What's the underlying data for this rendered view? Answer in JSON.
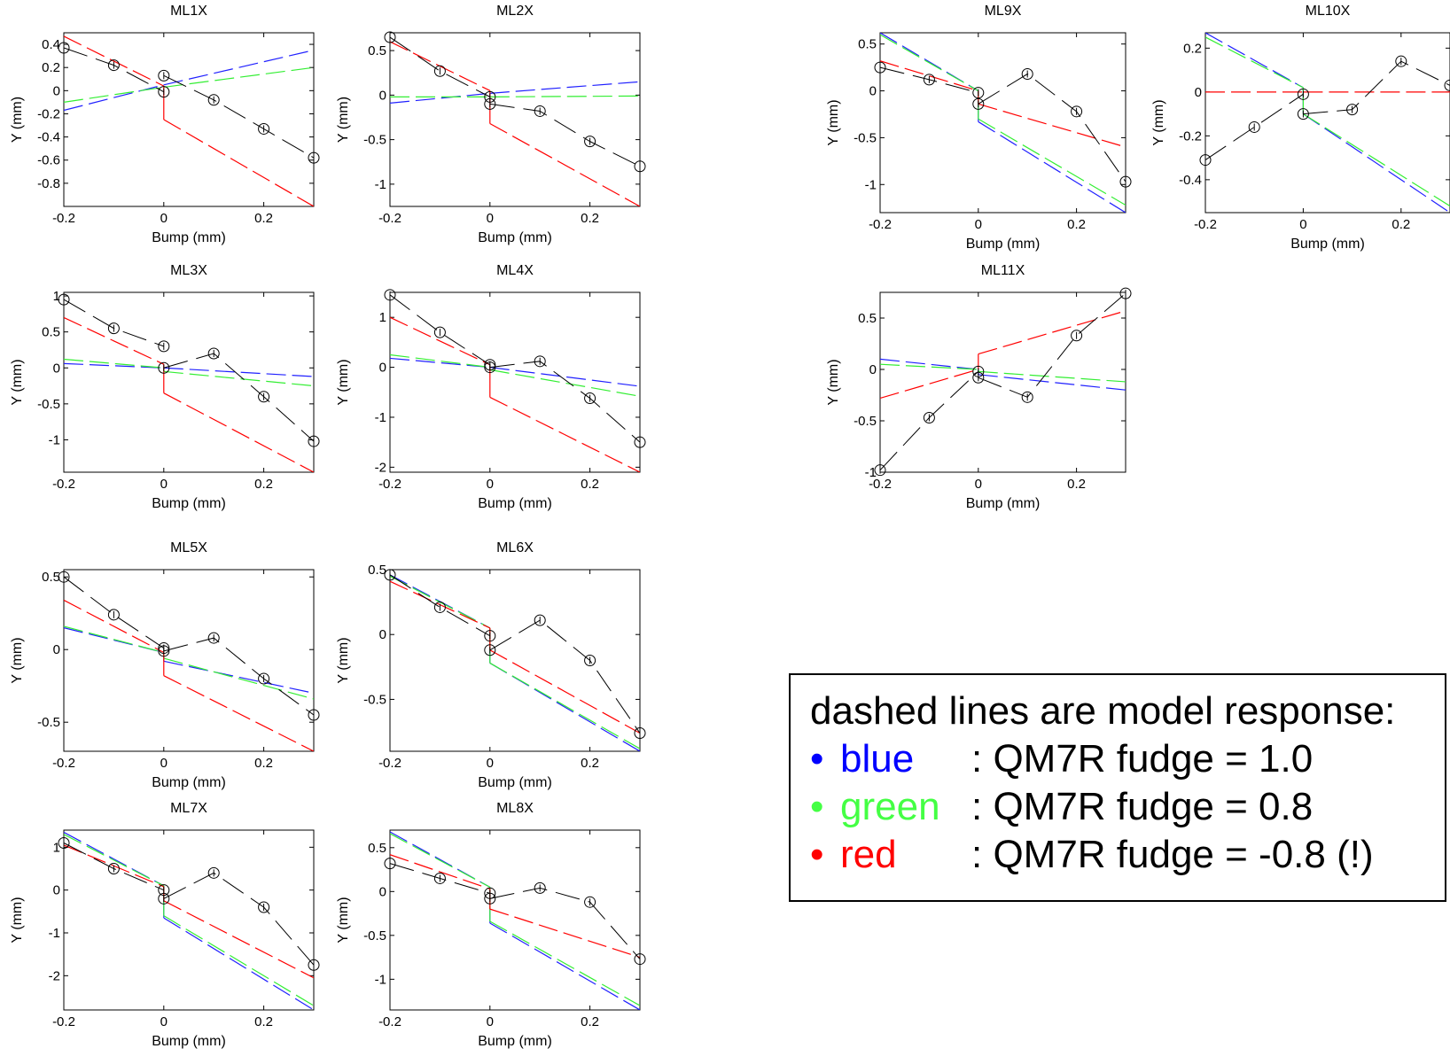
{
  "chart_data": [
    {
      "type": "line",
      "title": "ML1X",
      "xlabel": "Bump (mm)",
      "ylabel": "Y (mm)",
      "xlim": [
        -0.2,
        0.3
      ],
      "ylim": [
        -1.0,
        0.5
      ],
      "xticks": [
        -0.2,
        0,
        0.2
      ],
      "yticks": [
        0.4,
        0.2,
        0,
        -0.2,
        -0.4,
        -0.6,
        -0.8
      ],
      "ytick_labels": [
        "0.4",
        "0.2",
        "0",
        "-0.2",
        "-0.4",
        "-0.6",
        "-0.8"
      ],
      "measured": {
        "x": [
          -0.2,
          -0.1,
          0,
          0,
          0.1,
          0.2,
          0.3
        ],
        "y": [
          0.37,
          0.22,
          -0.01,
          0.13,
          -0.08,
          -0.33,
          -0.58
        ]
      },
      "model": {
        "blue": {
          "pre": [
            -0.17,
            0.05
          ],
          "post": [
            0.05,
            0.35
          ]
        },
        "green": {
          "pre": [
            -0.1,
            0.03
          ],
          "post": [
            0.03,
            0.2
          ]
        },
        "red": {
          "pre": [
            0.47,
            0.04
          ],
          "post": [
            -0.25,
            -1.0
          ]
        }
      }
    },
    {
      "type": "line",
      "title": "ML2X",
      "xlabel": "Bump (mm)",
      "ylabel": "Y (mm)",
      "xlim": [
        -0.2,
        0.3
      ],
      "ylim": [
        -1.25,
        0.7
      ],
      "xticks": [
        -0.2,
        0,
        0.2
      ],
      "yticks": [
        0.5,
        0,
        -0.5,
        -1
      ],
      "ytick_labels": [
        "0.5",
        "0",
        "-0.5",
        "-1"
      ],
      "measured": {
        "x": [
          -0.2,
          -0.1,
          0,
          0,
          0.1,
          0.2,
          0.3
        ],
        "y": [
          0.65,
          0.27,
          -0.02,
          -0.1,
          -0.18,
          -0.52,
          -0.8
        ]
      },
      "model": {
        "blue": {
          "pre": [
            -0.09,
            0.02
          ],
          "post": [
            0.02,
            0.15
          ]
        },
        "green": {
          "pre": [
            -0.02,
            -0.02
          ],
          "post": [
            -0.02,
            -0.01
          ]
        },
        "red": {
          "pre": [
            0.6,
            0.05
          ],
          "post": [
            -0.32,
            -1.25
          ]
        }
      }
    },
    {
      "type": "line",
      "title": "ML3X",
      "xlabel": "Bump (mm)",
      "ylabel": "Y (mm)",
      "xlim": [
        -0.2,
        0.3
      ],
      "ylim": [
        -1.45,
        1.05
      ],
      "xticks": [
        -0.2,
        0,
        0.2
      ],
      "yticks": [
        1,
        0.5,
        0,
        -0.5,
        -1
      ],
      "ytick_labels": [
        "1",
        "0.5",
        "0",
        "-0.5",
        "-1"
      ],
      "measured": {
        "x": [
          -0.2,
          -0.1,
          0,
          0,
          0.1,
          0.2,
          0.3
        ],
        "y": [
          0.95,
          0.55,
          0.3,
          0.0,
          0.2,
          -0.4,
          -1.02
        ]
      },
      "model": {
        "blue": {
          "pre": [
            0.06,
            0.0
          ],
          "post": [
            0.0,
            -0.12
          ]
        },
        "green": {
          "pre": [
            0.12,
            0.0
          ],
          "post": [
            -0.05,
            -0.25
          ]
        },
        "red": {
          "pre": [
            0.7,
            0.05
          ],
          "post": [
            -0.35,
            -1.45
          ]
        }
      }
    },
    {
      "type": "line",
      "title": "ML4X",
      "xlabel": "Bump (mm)",
      "ylabel": "Y (mm)",
      "xlim": [
        -0.2,
        0.3
      ],
      "ylim": [
        -2.1,
        1.5
      ],
      "xticks": [
        -0.2,
        0,
        0.2
      ],
      "yticks": [
        1,
        0,
        -1,
        -2
      ],
      "ytick_labels": [
        "1",
        "0",
        "-1",
        "-2"
      ],
      "measured": {
        "x": [
          -0.2,
          -0.1,
          0,
          0,
          0.1,
          0.2,
          0.3
        ],
        "y": [
          1.45,
          0.7,
          0.05,
          0.0,
          0.12,
          -0.62,
          -1.5
        ]
      },
      "model": {
        "blue": {
          "pre": [
            0.18,
            0.0
          ],
          "post": [
            0.0,
            -0.38
          ]
        },
        "green": {
          "pre": [
            0.25,
            0.0
          ],
          "post": [
            -0.05,
            -0.58
          ]
        },
        "red": {
          "pre": [
            1.0,
            0.05
          ],
          "post": [
            -0.6,
            -2.1
          ]
        }
      }
    },
    {
      "type": "line",
      "title": "ML5X",
      "xlabel": "Bump (mm)",
      "ylabel": "Y (mm)",
      "xlim": [
        -0.2,
        0.3
      ],
      "ylim": [
        -0.7,
        0.55
      ],
      "xticks": [
        -0.2,
        0,
        0.2
      ],
      "yticks": [
        0.5,
        0,
        -0.5
      ],
      "ytick_labels": [
        "0.5",
        "0",
        "-0.5"
      ],
      "measured": {
        "x": [
          -0.2,
          -0.1,
          0,
          0,
          0.1,
          0.2,
          0.3
        ],
        "y": [
          0.5,
          0.24,
          0.01,
          -0.01,
          0.08,
          -0.2,
          -0.45
        ]
      },
      "model": {
        "blue": {
          "pre": [
            0.15,
            -0.02
          ],
          "post": [
            -0.08,
            -0.3
          ]
        },
        "green": {
          "pre": [
            0.16,
            -0.02
          ],
          "post": [
            -0.06,
            -0.34
          ]
        },
        "red": {
          "pre": [
            0.34,
            -0.02
          ],
          "post": [
            -0.18,
            -0.7
          ]
        }
      }
    },
    {
      "type": "line",
      "title": "ML6X",
      "xlabel": "Bump (mm)",
      "ylabel": "Y (mm)",
      "xlim": [
        -0.2,
        0.3
      ],
      "ylim": [
        -0.9,
        0.5
      ],
      "xticks": [
        -0.2,
        0,
        0.2
      ],
      "yticks": [
        0.5,
        0,
        -0.5
      ],
      "ytick_labels": [
        "0.5",
        "0",
        "-0.5"
      ],
      "measured": {
        "x": [
          -0.2,
          -0.1,
          0,
          0,
          0.1,
          0.2,
          0.3
        ],
        "y": [
          0.46,
          0.21,
          -0.01,
          -0.12,
          0.11,
          -0.2,
          -0.76
        ]
      },
      "model": {
        "blue": {
          "pre": [
            0.46,
            0.05
          ],
          "post": [
            -0.22,
            -0.9
          ]
        },
        "green": {
          "pre": [
            0.45,
            0.05
          ],
          "post": [
            -0.22,
            -0.88
          ]
        },
        "red": {
          "pre": [
            0.41,
            0.05
          ],
          "post": [
            -0.12,
            -0.76
          ]
        }
      }
    },
    {
      "type": "line",
      "title": "ML7X",
      "xlabel": "Bump (mm)",
      "ylabel": "Y (mm)",
      "xlim": [
        -0.2,
        0.3
      ],
      "ylim": [
        -2.8,
        1.4
      ],
      "xticks": [
        -0.2,
        0,
        0.2
      ],
      "yticks": [
        1,
        0,
        -1,
        -2
      ],
      "ytick_labels": [
        "1",
        "0",
        "-1",
        "-2"
      ],
      "measured": {
        "x": [
          -0.2,
          -0.1,
          0,
          0,
          0.1,
          0.2,
          0.3
        ],
        "y": [
          1.1,
          0.5,
          0.0,
          -0.2,
          0.4,
          -0.4,
          -1.75
        ]
      },
      "model": {
        "blue": {
          "pre": [
            1.35,
            0.1
          ],
          "post": [
            -0.65,
            -2.8
          ]
        },
        "green": {
          "pre": [
            1.3,
            0.1
          ],
          "post": [
            -0.6,
            -2.7
          ]
        },
        "red": {
          "pre": [
            1.05,
            0.08
          ],
          "post": [
            -0.25,
            -2.05
          ]
        }
      }
    },
    {
      "type": "line",
      "title": "ML8X",
      "xlabel": "Bump (mm)",
      "ylabel": "Y (mm)",
      "xlim": [
        -0.2,
        0.3
      ],
      "ylim": [
        -1.35,
        0.7
      ],
      "xticks": [
        -0.2,
        0,
        0.2
      ],
      "yticks": [
        0.5,
        0,
        -0.5,
        -1
      ],
      "ytick_labels": [
        "0.5",
        "0",
        "-0.5",
        "-1"
      ],
      "measured": {
        "x": [
          -0.2,
          -0.1,
          0,
          0,
          0.1,
          0.2,
          0.3
        ],
        "y": [
          0.32,
          0.15,
          -0.02,
          -0.08,
          0.04,
          -0.12,
          -0.77
        ]
      },
      "model": {
        "blue": {
          "pre": [
            0.68,
            0.05
          ],
          "post": [
            -0.36,
            -1.35
          ]
        },
        "green": {
          "pre": [
            0.66,
            0.05
          ],
          "post": [
            -0.34,
            -1.3
          ]
        },
        "red": {
          "pre": [
            0.42,
            0.03
          ],
          "post": [
            -0.2,
            -0.75
          ]
        }
      }
    },
    {
      "type": "line",
      "title": "ML9X",
      "xlabel": "Bump (mm)",
      "ylabel": "Y (mm)",
      "xlim": [
        -0.2,
        0.3
      ],
      "ylim": [
        -1.3,
        0.62
      ],
      "xticks": [
        -0.2,
        0,
        0.2
      ],
      "yticks": [
        0.5,
        0,
        -0.5,
        -1
      ],
      "ytick_labels": [
        "0.5",
        "0",
        "-0.5",
        "-1"
      ],
      "measured": {
        "x": [
          -0.2,
          -0.1,
          0,
          0,
          0.1,
          0.2,
          0.3
        ],
        "y": [
          0.25,
          0.12,
          -0.02,
          -0.14,
          0.18,
          -0.22,
          -0.97
        ]
      },
      "model": {
        "blue": {
          "pre": [
            0.62,
            0.0
          ],
          "post": [
            -0.33,
            -1.3
          ]
        },
        "green": {
          "pre": [
            0.6,
            0.0
          ],
          "post": [
            -0.3,
            -1.22
          ]
        },
        "red": {
          "pre": [
            0.32,
            0.0
          ],
          "post": [
            -0.14,
            -0.6
          ]
        }
      }
    },
    {
      "type": "line",
      "title": "ML10X",
      "xlabel": "Bump (mm)",
      "ylabel": "Y (mm)",
      "xlim": [
        -0.2,
        0.3
      ],
      "ylim": [
        -0.55,
        0.27
      ],
      "xticks": [
        -0.2,
        0,
        0.2
      ],
      "yticks": [
        0.2,
        0,
        -0.2,
        -0.4
      ],
      "ytick_labels": [
        "0.2",
        "0",
        "-0.2",
        "-0.4"
      ],
      "measured": {
        "x": [
          -0.2,
          -0.1,
          0,
          0,
          0.1,
          0.2,
          0.3
        ],
        "y": [
          -0.31,
          -0.16,
          -0.01,
          -0.1,
          -0.08,
          0.14,
          0.03
        ]
      },
      "model": {
        "blue": {
          "pre": [
            0.27,
            0.02
          ],
          "post": [
            -0.1,
            -0.55
          ]
        },
        "green": {
          "pre": [
            0.25,
            0.02
          ],
          "post": [
            -0.1,
            -0.52
          ]
        },
        "red": {
          "pre": [
            0.0,
            0.0
          ],
          "post": [
            0.0,
            0.0
          ]
        }
      }
    },
    {
      "type": "line",
      "title": "ML11X",
      "xlabel": "Bump (mm)",
      "ylabel": "Y (mm)",
      "xlim": [
        -0.2,
        0.3
      ],
      "ylim": [
        -1.0,
        0.75
      ],
      "xticks": [
        -0.2,
        0,
        0.2
      ],
      "yticks": [
        0.5,
        0,
        -0.5,
        -1
      ],
      "ytick_labels": [
        "0.5",
        "0",
        "-0.5",
        "-1"
      ],
      "measured": {
        "x": [
          -0.2,
          -0.1,
          0,
          0,
          0.1,
          0.2,
          0.3
        ],
        "y": [
          -0.98,
          -0.47,
          -0.02,
          -0.08,
          -0.27,
          0.33,
          0.74
        ]
      },
      "model": {
        "blue": {
          "pre": [
            0.1,
            0.0
          ],
          "post": [
            -0.05,
            -0.2
          ]
        },
        "green": {
          "pre": [
            0.05,
            0.0
          ],
          "post": [
            -0.02,
            -0.12
          ]
        },
        "red": {
          "pre": [
            -0.28,
            0.0
          ],
          "post": [
            0.15,
            0.57
          ]
        }
      }
    }
  ],
  "legend": {
    "heading": "dashed lines are model response:",
    "bullet": "•",
    "items": [
      {
        "label": "blue",
        "desc": ": QM7R fudge =  1.0",
        "color": "#0000ff"
      },
      {
        "label": "green",
        "desc": ": QM7R fudge =  0.8",
        "color": "#44ff44"
      },
      {
        "label": "red",
        "desc": ": QM7R fudge = -0.8 (!)",
        "color": "#ff0000"
      }
    ]
  },
  "colors": {
    "blue": "#2020ff",
    "green": "#33ee33",
    "red": "#ff0000",
    "measured": "#000000"
  }
}
